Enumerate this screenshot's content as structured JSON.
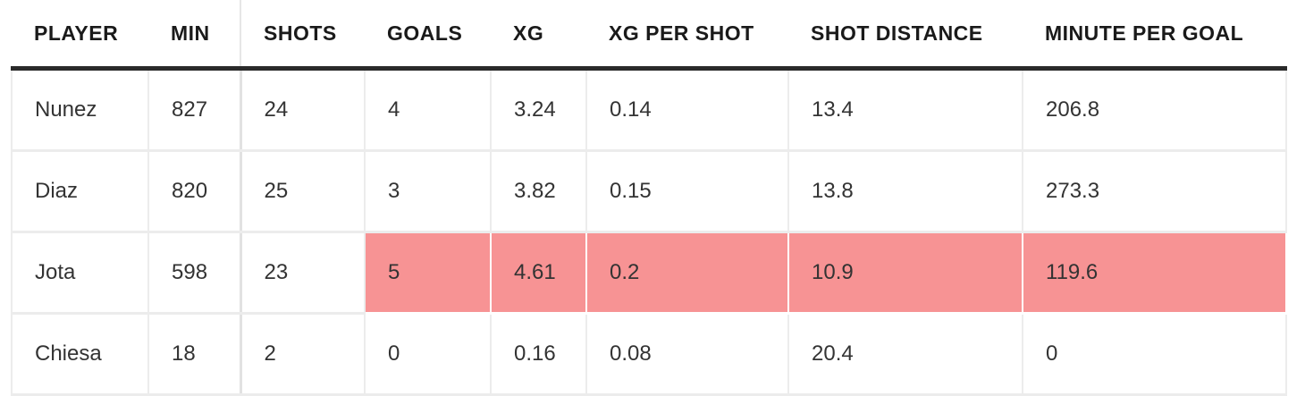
{
  "chart_data": {
    "type": "table",
    "columns": [
      "PLAYER",
      "MIN",
      "SHOTS",
      "GOALS",
      "XG",
      "XG PER SHOT",
      "SHOT DISTANCE",
      "MINUTE PER GOAL"
    ],
    "rows": [
      [
        "Nunez",
        "827",
        "24",
        "4",
        "3.24",
        "0.14",
        "13.4",
        "206.8"
      ],
      [
        "Diaz",
        "820",
        "25",
        "3",
        "3.82",
        "0.15",
        "13.8",
        "273.3"
      ],
      [
        "Jota",
        "598",
        "23",
        "5",
        "4.61",
        "0.2",
        "10.9",
        "119.6"
      ],
      [
        "Chiesa",
        "18",
        "2",
        "0",
        "0.16",
        "0.08",
        "20.4",
        "0"
      ]
    ],
    "highlight": {
      "row": 2,
      "columns_from": 3,
      "color": "#f79394"
    },
    "header_rule_color": "#2a2a2a"
  }
}
